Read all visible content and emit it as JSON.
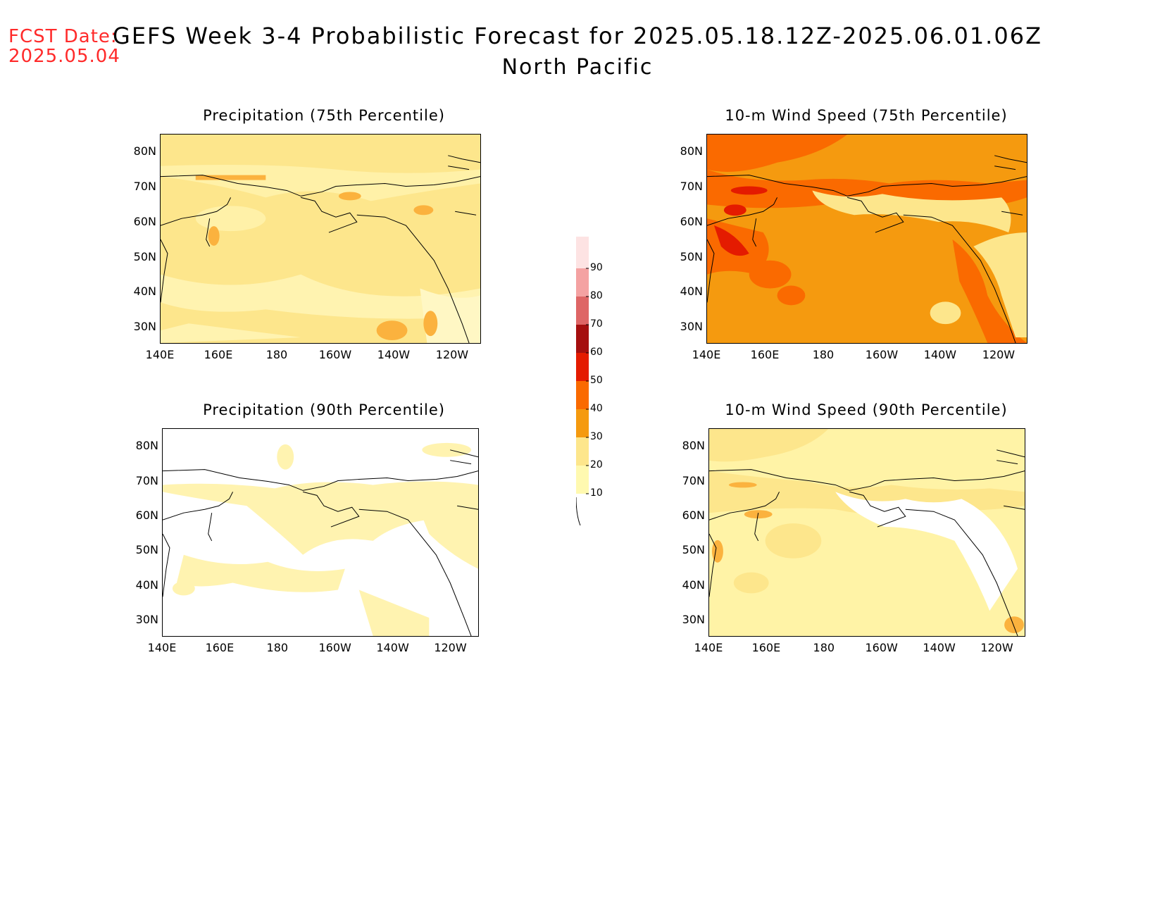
{
  "header": {
    "fcst_label": "FCST Date:",
    "fcst_date": "2025.05.04",
    "title": "GEFS Week 3-4 Probabilistic Forecast for 2025.05.18.12Z-2025.06.01.06Z",
    "region": "North Pacific"
  },
  "axes": {
    "lat_ticks": [
      "80N",
      "70N",
      "60N",
      "50N",
      "40N",
      "30N"
    ],
    "lon_ticks": [
      "140E",
      "160E",
      "180",
      "160W",
      "140W",
      "120W"
    ]
  },
  "panels": [
    {
      "id": "precip75",
      "title": "Precipitation (75th Percentile)",
      "base_color": "#fde68c"
    },
    {
      "id": "wind75",
      "title": "10-m Wind Speed (75th Percentile)",
      "base_color": "#f59a0f"
    },
    {
      "id": "precip90",
      "title": "Precipitation (90th Percentile)",
      "base_color": "#ffffff"
    },
    {
      "id": "wind90",
      "title": "10-m Wind Speed (90th Percentile)",
      "base_color": "#fff3a6"
    }
  ],
  "colorbar": {
    "levels": [
      "90",
      "80",
      "70",
      "60",
      "50",
      "40",
      "30",
      "20",
      "10"
    ],
    "colors": {
      "10-20": "#fff9b0",
      "20-30": "#fde68c",
      "30-40": "#f59a0f",
      "40-50": "#fa6a00",
      "50-60": "#e41b00",
      "60-70": "#a50f0f",
      "70-80": "#de6666",
      "80-90": "#f4a2a2",
      "90+": "#fde3e3"
    }
  }
}
